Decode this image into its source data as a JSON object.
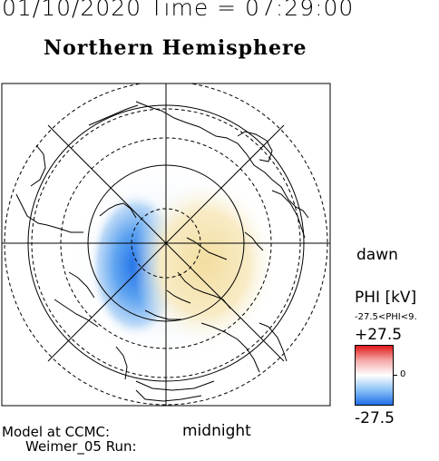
{
  "header": {
    "date_time": "01/10/2020 Time = 07:29:00",
    "hemisphere": "Northern Hemisphere"
  },
  "map": {
    "orientation_right": "dawn",
    "orientation_bottom": "midnight"
  },
  "colorbar": {
    "title": "PHI [kV]",
    "range_text": "-27.5<PHI<9.",
    "max_label": "+27.5",
    "mid_label": "0",
    "min_label": "-27.5",
    "colors": {
      "negative": "#1e6fe8",
      "zero": "#ffffff",
      "positive": "#e01818",
      "weak_positive": "#f3dea0"
    }
  },
  "footer": {
    "model_line": "Model at CCMC:",
    "run_line": "Weimer_05 Run:"
  }
}
